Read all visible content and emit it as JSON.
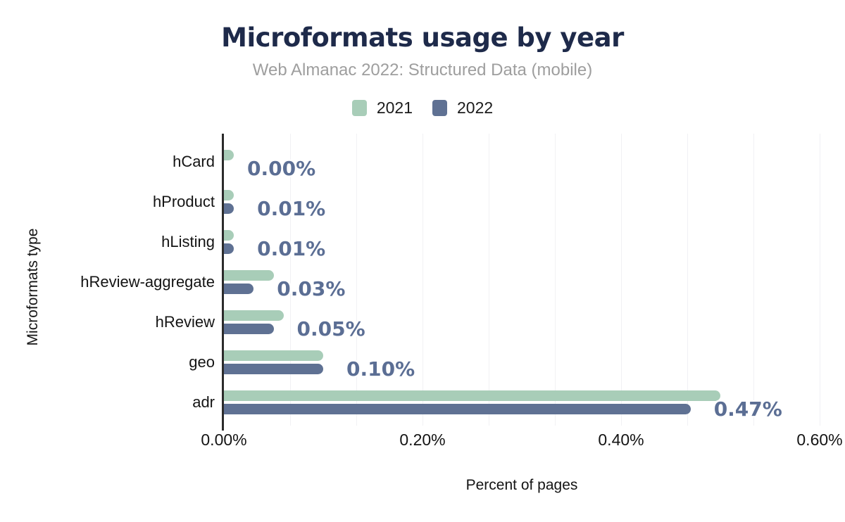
{
  "chart": {
    "colors": {
      "title": "#1e2a4a",
      "subtitle": "#9e9e9e",
      "value_label": "#5b6e94",
      "axis_line": "#2b2b2b",
      "gridline": "#f1f1f4",
      "tick_text": "#141414"
    }
  },
  "chart_data": {
    "type": "bar",
    "orientation": "horizontal",
    "title": "Microformats usage by year",
    "subtitle": "Web Almanac 2022: Structured Data (mobile)",
    "xlabel": "Percent of pages",
    "ylabel": "Microformats type",
    "categories": [
      "hCard",
      "hProduct",
      "hListing",
      "hReview-aggregate",
      "hReview",
      "geo",
      "adr"
    ],
    "series": [
      {
        "name": "2021",
        "color": "#a8cdb8",
        "values": [
          0.01,
          0.01,
          0.01,
          0.05,
          0.06,
          0.1,
          0.5
        ]
      },
      {
        "name": "2022",
        "color": "#5f7193",
        "values": [
          0.0,
          0.01,
          0.01,
          0.03,
          0.05,
          0.1,
          0.47
        ]
      }
    ],
    "data_labels": [
      "0.00%",
      "0.01%",
      "0.01%",
      "0.03%",
      "0.05%",
      "0.10%",
      "0.47%"
    ],
    "data_labels_series": "2022",
    "x_ticks": [
      "0.00%",
      "0.20%",
      "0.40%",
      "0.60%"
    ],
    "x_tick_values": [
      0,
      0.2,
      0.4,
      0.6
    ],
    "xlim": [
      0,
      0.6
    ],
    "grid_intervals": 9,
    "grid": "vertical-minor",
    "legend_position": "top"
  }
}
